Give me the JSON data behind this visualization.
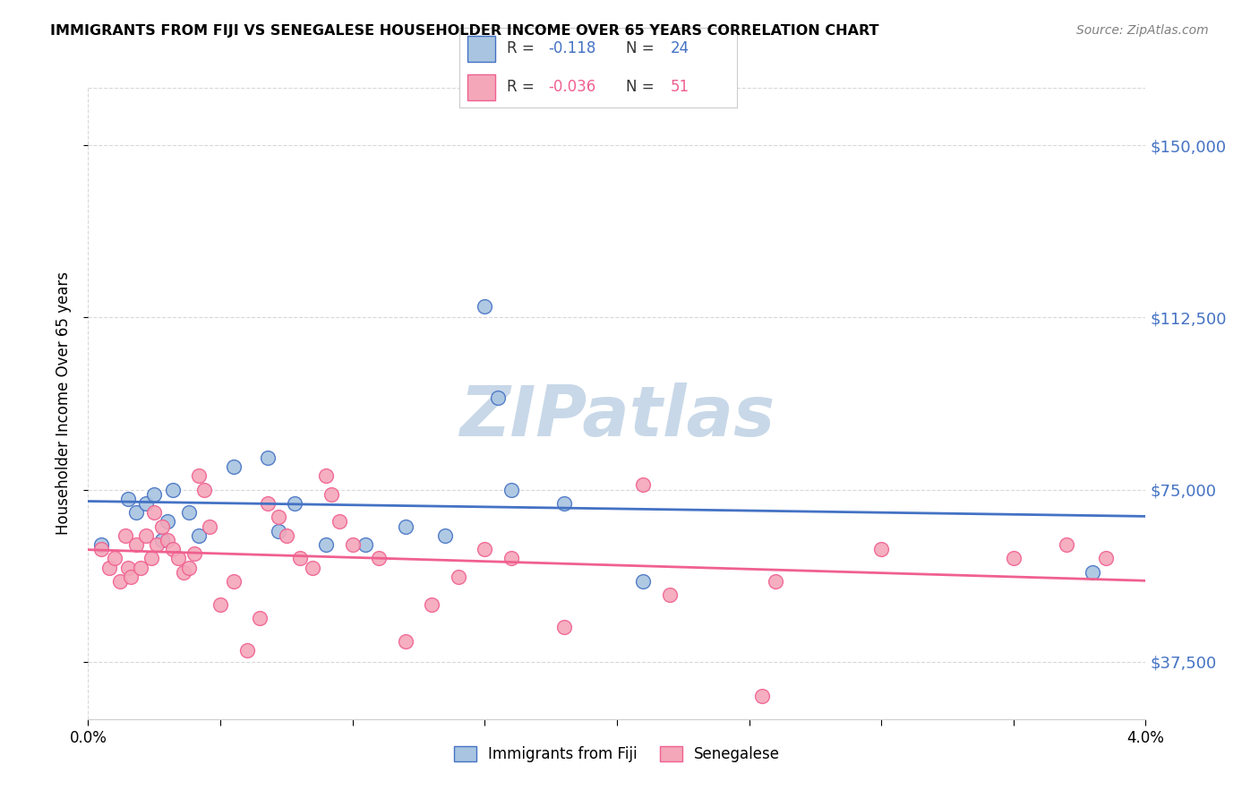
{
  "title": "IMMIGRANTS FROM FIJI VS SENEGALESE HOUSEHOLDER INCOME OVER 65 YEARS CORRELATION CHART",
  "source": "Source: ZipAtlas.com",
  "ylabel": "Householder Income Over 65 years",
  "xlim": [
    0.0,
    4.0
  ],
  "ylim": [
    25000,
    162500
  ],
  "yticks": [
    37500,
    75000,
    112500,
    150000
  ],
  "ytick_labels": [
    "$37,500",
    "$75,000",
    "$112,500",
    "$150,000"
  ],
  "legend_labels": [
    "Immigrants from Fiji",
    "Senegalese"
  ],
  "fiji_R": "-0.118",
  "fiji_N": "24",
  "senegal_R": "-0.036",
  "senegal_N": "51",
  "fiji_color": "#a8c4e0",
  "senegal_color": "#f4a7b9",
  "fiji_line_color": "#4472c4",
  "senegal_line_color": "#f06090",
  "fiji_scatter_x": [
    0.05,
    0.15,
    0.18,
    0.22,
    0.25,
    0.28,
    0.3,
    0.32,
    0.38,
    0.42,
    0.55,
    0.68,
    0.72,
    0.78,
    0.9,
    1.05,
    1.2,
    1.35,
    1.5,
    1.55,
    1.6,
    1.8,
    2.1,
    3.8
  ],
  "fiji_scatter_y": [
    63000,
    73000,
    70000,
    72000,
    74000,
    64000,
    68000,
    75000,
    70000,
    65000,
    80000,
    82000,
    66000,
    72000,
    63000,
    63000,
    67000,
    65000,
    115000,
    95000,
    75000,
    72000,
    55000,
    57000
  ],
  "senegal_scatter_x": [
    0.05,
    0.08,
    0.1,
    0.12,
    0.14,
    0.15,
    0.16,
    0.18,
    0.2,
    0.22,
    0.24,
    0.25,
    0.26,
    0.28,
    0.3,
    0.32,
    0.34,
    0.36,
    0.38,
    0.4,
    0.42,
    0.44,
    0.46,
    0.5,
    0.55,
    0.6,
    0.65,
    0.68,
    0.72,
    0.75,
    0.8,
    0.85,
    0.9,
    0.92,
    0.95,
    1.0,
    1.1,
    1.2,
    1.3,
    1.4,
    1.5,
    1.6,
    1.8,
    2.1,
    2.2,
    2.6,
    3.0,
    3.5,
    3.7,
    3.85,
    2.55
  ],
  "senegal_scatter_y": [
    62000,
    58000,
    60000,
    55000,
    65000,
    58000,
    56000,
    63000,
    58000,
    65000,
    60000,
    70000,
    63000,
    67000,
    64000,
    62000,
    60000,
    57000,
    58000,
    61000,
    78000,
    75000,
    67000,
    50000,
    55000,
    40000,
    47000,
    72000,
    69000,
    65000,
    60000,
    58000,
    78000,
    74000,
    68000,
    63000,
    60000,
    42000,
    50000,
    56000,
    62000,
    60000,
    45000,
    76000,
    52000,
    55000,
    62000,
    60000,
    63000,
    60000,
    30000
  ],
  "background_color": "#ffffff",
  "grid_color": "#d8d8d8",
  "watermark": "ZIPatlas",
  "watermark_color": "#c8d8e8"
}
